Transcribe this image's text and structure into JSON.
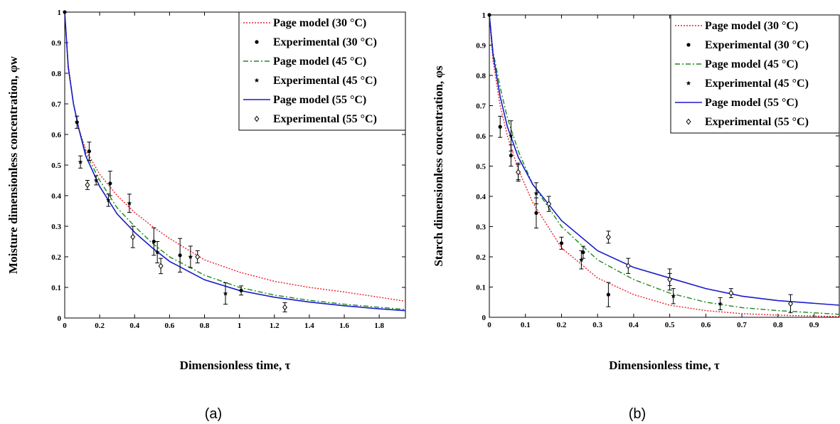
{
  "chart_data": [
    {
      "type": "line",
      "caption": "(a)",
      "xlabel": "Dimensionless time, τ",
      "ylabel": "Moisture dimensionless concentration, φw",
      "xlim": [
        0,
        1.95
      ],
      "ylim": [
        0,
        1
      ],
      "xticks": [
        "0",
        "0.2",
        "0.4",
        "0.6",
        "0.8",
        "1",
        "1.2",
        "1.4",
        "1.6",
        "1.8"
      ],
      "yticks": [
        "0",
        "0.1",
        "0.2",
        "0.3",
        "0.4",
        "0.5",
        "0.6",
        "0.7",
        "0.8",
        "0.9",
        "1"
      ],
      "grid": false,
      "legend_position": "top-right",
      "lines": [
        {
          "name": "Page model (30 °C)",
          "color": "#e8212a",
          "style": "dotted",
          "x": [
            0,
            0.02,
            0.05,
            0.08,
            0.12,
            0.2,
            0.3,
            0.4,
            0.5,
            0.6,
            0.8,
            1.0,
            1.2,
            1.4,
            1.6,
            1.8,
            1.95
          ],
          "y": [
            1,
            0.83,
            0.7,
            0.62,
            0.55,
            0.47,
            0.4,
            0.345,
            0.3,
            0.26,
            0.19,
            0.15,
            0.12,
            0.1,
            0.085,
            0.068,
            0.055
          ]
        },
        {
          "name": "Page model (45 °C)",
          "color": "#1a8a1a",
          "style": "dashdot",
          "x": [
            0,
            0.02,
            0.05,
            0.08,
            0.12,
            0.2,
            0.3,
            0.4,
            0.5,
            0.6,
            0.8,
            1.0,
            1.2,
            1.4,
            1.6,
            1.8,
            1.95
          ],
          "y": [
            1,
            0.82,
            0.7,
            0.62,
            0.54,
            0.45,
            0.36,
            0.3,
            0.245,
            0.2,
            0.14,
            0.1,
            0.075,
            0.058,
            0.045,
            0.035,
            0.028
          ]
        },
        {
          "name": "Page model (55 °C)",
          "color": "#1a1acc",
          "style": "solid",
          "x": [
            0,
            0.02,
            0.05,
            0.08,
            0.12,
            0.2,
            0.3,
            0.4,
            0.5,
            0.6,
            0.8,
            1.0,
            1.2,
            1.4,
            1.6,
            1.8,
            1.95
          ],
          "y": [
            1,
            0.82,
            0.7,
            0.62,
            0.53,
            0.43,
            0.34,
            0.28,
            0.23,
            0.185,
            0.125,
            0.09,
            0.068,
            0.052,
            0.04,
            0.03,
            0.024
          ]
        }
      ],
      "points": [
        {
          "name": "Experimental (30 °C)",
          "marker": "dot",
          "x": [
            0,
            0.07,
            0.14,
            0.26,
            0.51,
            0.66,
            1.01
          ],
          "y": [
            1,
            0.64,
            0.545,
            0.44,
            0.25,
            0.205,
            0.09
          ],
          "err": [
            0,
            0.02,
            0.03,
            0.04,
            0.045,
            0.055,
            0.015
          ]
        },
        {
          "name": "Experimental (45 °C)",
          "marker": "star",
          "x": [
            0.09,
            0.18,
            0.25,
            0.37,
            0.53,
            0.72,
            0.92
          ],
          "y": [
            0.51,
            0.45,
            0.385,
            0.375,
            0.215,
            0.2,
            0.08
          ],
          "err": [
            0.02,
            0.015,
            0.02,
            0.03,
            0.035,
            0.035,
            0.035
          ]
        },
        {
          "name": "Experimental (55 °C)",
          "marker": "diamond",
          "x": [
            0.13,
            0.39,
            0.55,
            0.76,
            1.26
          ],
          "y": [
            0.435,
            0.265,
            0.17,
            0.2,
            0.035
          ],
          "err": [
            0.015,
            0.035,
            0.025,
            0.02,
            0.015
          ]
        }
      ]
    },
    {
      "type": "line",
      "caption": "(b)",
      "xlabel": "Dimensionless time, τ",
      "ylabel": "Starch dimensionless concentration, φs",
      "xlim": [
        0,
        0.97
      ],
      "ylim": [
        0,
        1
      ],
      "xticks": [
        "0",
        "0.1",
        "0.2",
        "0.3",
        "0.4",
        "0.5",
        "0.6",
        "0.7",
        "0.8",
        "0.9"
      ],
      "yticks": [
        "0",
        "0.1",
        "0.2",
        "0.3",
        "0.4",
        "0.5",
        "0.6",
        "0.7",
        "0.8",
        "0.9",
        "1"
      ],
      "grid": false,
      "legend_position": "top-right",
      "lines": [
        {
          "name": "Page model (30 °C)",
          "color": "#e8212a",
          "style": "dotted",
          "x": [
            0,
            0.01,
            0.03,
            0.05,
            0.08,
            0.12,
            0.2,
            0.3,
            0.4,
            0.5,
            0.6,
            0.7,
            0.8,
            0.97
          ],
          "y": [
            1,
            0.85,
            0.7,
            0.6,
            0.49,
            0.38,
            0.23,
            0.13,
            0.075,
            0.04,
            0.022,
            0.012,
            0.007,
            0.002
          ]
        },
        {
          "name": "Page model (45 °C)",
          "color": "#1a8a1a",
          "style": "dashdot",
          "x": [
            0,
            0.01,
            0.03,
            0.05,
            0.08,
            0.12,
            0.2,
            0.3,
            0.4,
            0.5,
            0.6,
            0.7,
            0.8,
            0.97
          ],
          "y": [
            1,
            0.88,
            0.76,
            0.66,
            0.55,
            0.44,
            0.3,
            0.19,
            0.125,
            0.08,
            0.05,
            0.032,
            0.022,
            0.01
          ]
        },
        {
          "name": "Page model (55 °C)",
          "color": "#1a1acc",
          "style": "solid",
          "x": [
            0,
            0.01,
            0.03,
            0.05,
            0.08,
            0.12,
            0.2,
            0.3,
            0.4,
            0.5,
            0.6,
            0.7,
            0.8,
            0.97
          ],
          "y": [
            1,
            0.87,
            0.73,
            0.63,
            0.53,
            0.44,
            0.32,
            0.22,
            0.165,
            0.13,
            0.095,
            0.07,
            0.055,
            0.04
          ]
        }
      ],
      "points": [
        {
          "name": "Experimental (30 °C)",
          "marker": "dot",
          "x": [
            0,
            0.03,
            0.06,
            0.13,
            0.2,
            0.26,
            0.33,
            0.5
          ],
          "y": [
            1,
            0.63,
            0.535,
            0.345,
            0.245,
            0.215,
            0.075,
            0.125
          ],
          "err": [
            0,
            0.035,
            0.035,
            0.05,
            0.02,
            0.02,
            0.04,
            0.035
          ]
        },
        {
          "name": "Experimental (45 °C)",
          "marker": "star",
          "x": [
            0.06,
            0.08,
            0.13,
            0.255,
            0.51,
            0.64
          ],
          "y": [
            0.6,
            0.48,
            0.41,
            0.19,
            0.07,
            0.045
          ],
          "err": [
            0.05,
            0.03,
            0.035,
            0.03,
            0.025,
            0.02
          ]
        },
        {
          "name": "Experimental (55 °C)",
          "marker": "diamond",
          "x": [
            0.08,
            0.165,
            0.33,
            0.385,
            0.5,
            0.67,
            0.835
          ],
          "y": [
            0.48,
            0.375,
            0.265,
            0.17,
            0.125,
            0.08,
            0.045
          ],
          "err": [
            0.025,
            0.025,
            0.02,
            0.025,
            0.02,
            0.015,
            0.03
          ]
        }
      ]
    }
  ]
}
